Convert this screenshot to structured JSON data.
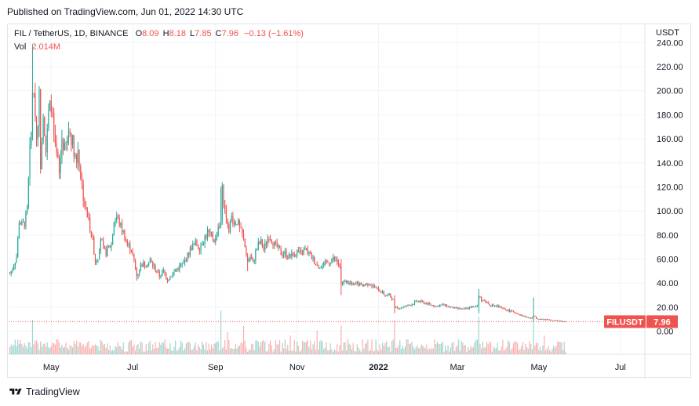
{
  "header": {
    "published": "Published on TradingView.com, Jun 01, 2022 14:30 UTC"
  },
  "legend": {
    "symbol": "FIL / TetherUS, 1D, BINANCE",
    "open_label": "O",
    "open": "8.09",
    "high_label": "H",
    "high": "8.18",
    "low_label": "L",
    "low": "7.85",
    "close_label": "C",
    "close": "7.96",
    "change": "−0.13 (−1.61%)",
    "vol_label": "Vol",
    "vol": "2.014M"
  },
  "price_badge": {
    "ticker": "FILUSDT",
    "price": "7.96"
  },
  "footer": {
    "brand": "TradingView"
  },
  "colors": {
    "up": "#26a69a",
    "down": "#ef5350",
    "grid": "#f0f3fa",
    "axis_text": "#131722"
  },
  "chart_data": {
    "type": "candlestick",
    "title": "FIL / TetherUS, 1D, BINANCE",
    "y_unit": "USDT",
    "ylim": [
      -12,
      250
    ],
    "y_ticks": [
      0,
      20,
      40,
      60,
      80,
      100,
      120,
      140,
      160,
      180,
      200,
      220,
      240
    ],
    "y_tick_labels": [
      "0.00",
      "20.00",
      "40.00",
      "60.00",
      "80.00",
      "100.00",
      "120.00",
      "140.00",
      "160.00",
      "180.00",
      "200.00",
      "220.00",
      "240.00"
    ],
    "x_labels": [
      "May",
      "Jul",
      "Sep",
      "Nov",
      "2022",
      "Mar",
      "May",
      "Jul"
    ],
    "x_label_days": [
      31,
      92,
      154,
      215,
      276,
      335,
      396,
      457
    ],
    "first_day": "2021-04-01",
    "last_price": 7.96,
    "price_path": [
      [
        0,
        48
      ],
      [
        2,
        52
      ],
      [
        5,
        62
      ],
      [
        7,
        92
      ],
      [
        9,
        88
      ],
      [
        11,
        90
      ],
      [
        13,
        100
      ],
      [
        14,
        125
      ],
      [
        15,
        148
      ],
      [
        16,
        165
      ],
      [
        17,
        200
      ],
      [
        18,
        190
      ],
      [
        19,
        185
      ],
      [
        20,
        160
      ],
      [
        22,
        195
      ],
      [
        23,
        140
      ],
      [
        25,
        185
      ],
      [
        27,
        150
      ],
      [
        29,
        180
      ],
      [
        31,
        190
      ],
      [
        32,
        175
      ],
      [
        34,
        150
      ],
      [
        36,
        140
      ],
      [
        37,
        130
      ],
      [
        39,
        160
      ],
      [
        41,
        150
      ],
      [
        43,
        158
      ],
      [
        44,
        168
      ],
      [
        46,
        162
      ],
      [
        48,
        152
      ],
      [
        50,
        140
      ],
      [
        51,
        152
      ],
      [
        53,
        130
      ],
      [
        55,
        112
      ],
      [
        57,
        100
      ],
      [
        59,
        92
      ],
      [
        62,
        75
      ],
      [
        64,
        58
      ],
      [
        66,
        62
      ],
      [
        68,
        78
      ],
      [
        70,
        68
      ],
      [
        72,
        65
      ],
      [
        74,
        70
      ],
      [
        76,
        72
      ],
      [
        78,
        92
      ],
      [
        80,
        95
      ],
      [
        82,
        90
      ],
      [
        85,
        82
      ],
      [
        88,
        72
      ],
      [
        91,
        68
      ],
      [
        93,
        58
      ],
      [
        95,
        46
      ],
      [
        98,
        55
      ],
      [
        101,
        56
      ],
      [
        105,
        58
      ],
      [
        108,
        53
      ],
      [
        112,
        46
      ],
      [
        115,
        50
      ],
      [
        118,
        43
      ],
      [
        122,
        48
      ],
      [
        126,
        53
      ],
      [
        130,
        56
      ],
      [
        133,
        63
      ],
      [
        136,
        70
      ],
      [
        139,
        73
      ],
      [
        142,
        70
      ],
      [
        145,
        76
      ],
      [
        148,
        82
      ],
      [
        151,
        78
      ],
      [
        154,
        76
      ],
      [
        156,
        88
      ],
      [
        158,
        90
      ],
      [
        159,
        118
      ],
      [
        160,
        105
      ],
      [
        162,
        98
      ],
      [
        164,
        86
      ],
      [
        166,
        95
      ],
      [
        168,
        90
      ],
      [
        170,
        92
      ],
      [
        172,
        85
      ],
      [
        174,
        80
      ],
      [
        176,
        70
      ],
      [
        178,
        58
      ],
      [
        180,
        62
      ],
      [
        182,
        56
      ],
      [
        184,
        66
      ],
      [
        186,
        72
      ],
      [
        188,
        74
      ],
      [
        190,
        68
      ],
      [
        192,
        74
      ],
      [
        194,
        80
      ],
      [
        196,
        76
      ],
      [
        198,
        72
      ],
      [
        200,
        70
      ],
      [
        203,
        65
      ],
      [
        206,
        65
      ],
      [
        209,
        62
      ],
      [
        212,
        64
      ],
      [
        215,
        66
      ],
      [
        218,
        64
      ],
      [
        221,
        68
      ],
      [
        224,
        64
      ],
      [
        227,
        60
      ],
      [
        230,
        55
      ],
      [
        233,
        53
      ],
      [
        236,
        56
      ],
      [
        239,
        58
      ],
      [
        242,
        60
      ],
      [
        245,
        58
      ],
      [
        247,
        53
      ],
      [
        248,
        38
      ],
      [
        251,
        42
      ],
      [
        254,
        40
      ],
      [
        257,
        38
      ],
      [
        260,
        40
      ],
      [
        263,
        38
      ],
      [
        266,
        39
      ],
      [
        269,
        40
      ],
      [
        272,
        37
      ],
      [
        275,
        35
      ],
      [
        278,
        33
      ],
      [
        281,
        30
      ],
      [
        284,
        30
      ],
      [
        287,
        26
      ],
      [
        288,
        20
      ],
      [
        291,
        19
      ],
      [
        294,
        20
      ],
      [
        297,
        21
      ],
      [
        300,
        22
      ],
      [
        303,
        24
      ],
      [
        306,
        25
      ],
      [
        309,
        24
      ],
      [
        312,
        23
      ],
      [
        315,
        22
      ],
      [
        318,
        21
      ],
      [
        321,
        21
      ],
      [
        324,
        22
      ],
      [
        327,
        21
      ],
      [
        330,
        20
      ],
      [
        333,
        19
      ],
      [
        336,
        19
      ],
      [
        339,
        18
      ],
      [
        342,
        19
      ],
      [
        345,
        20
      ],
      [
        348,
        20
      ],
      [
        350,
        22
      ],
      [
        351,
        30
      ],
      [
        353,
        26
      ],
      [
        356,
        25
      ],
      [
        359,
        22
      ],
      [
        362,
        21
      ],
      [
        365,
        21
      ],
      [
        368,
        19
      ],
      [
        371,
        18
      ],
      [
        374,
        17
      ],
      [
        377,
        16
      ],
      [
        380,
        15
      ],
      [
        383,
        13
      ],
      [
        386,
        12
      ],
      [
        389,
        11
      ],
      [
        391,
        11
      ],
      [
        392,
        13
      ],
      [
        395,
        10
      ],
      [
        398,
        10
      ],
      [
        401,
        9.5
      ],
      [
        404,
        9.8
      ],
      [
        407,
        9
      ],
      [
        410,
        8.8
      ],
      [
        413,
        8.2
      ],
      [
        415,
        8.1
      ],
      [
        416,
        7.96
      ]
    ],
    "spikes": [
      {
        "day": 17,
        "high": 238
      },
      {
        "day": 158,
        "high": 120
      },
      {
        "day": 248,
        "high": 60
      },
      {
        "day": 288,
        "high": 30
      },
      {
        "day": 351,
        "high": 35
      },
      {
        "day": 392,
        "high": 28
      }
    ],
    "dips": [
      {
        "day": 64,
        "low": 55
      },
      {
        "day": 95,
        "low": 42
      },
      {
        "day": 118,
        "low": 40
      },
      {
        "day": 178,
        "low": 50
      },
      {
        "day": 248,
        "low": 30
      },
      {
        "day": 288,
        "low": 15
      },
      {
        "day": 351,
        "low": 15
      },
      {
        "day": 392,
        "low": 8
      }
    ],
    "volume": {
      "label": "Vol",
      "last_value": "2.014M",
      "note": "relative volume bars under the price pane",
      "high_volume_days": [
        {
          "day": 17,
          "rel": 0.55
        },
        {
          "day": 158,
          "rel": 0.7
        },
        {
          "day": 163,
          "rel": 0.35
        },
        {
          "day": 175,
          "rel": 0.45
        },
        {
          "day": 210,
          "rel": 0.3
        },
        {
          "day": 230,
          "rel": 0.38
        },
        {
          "day": 248,
          "rel": 0.45
        },
        {
          "day": 288,
          "rel": 0.55
        },
        {
          "day": 351,
          "rel": 0.6
        },
        {
          "day": 392,
          "rel": 0.6
        },
        {
          "day": 400,
          "rel": 0.3
        }
      ]
    }
  }
}
